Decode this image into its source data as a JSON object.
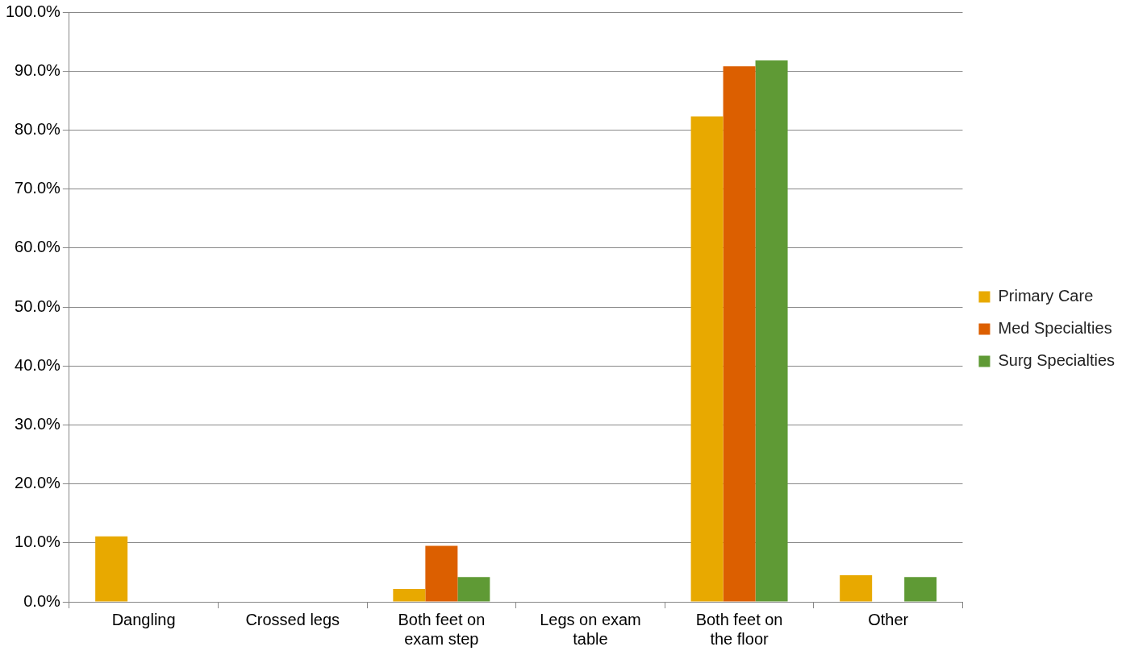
{
  "chart_data": {
    "type": "bar",
    "categories": [
      "Dangling",
      "Crossed legs",
      "Both feet on exam step",
      "Legs on exam table",
      "Both feet on the floor",
      "Other"
    ],
    "series": [
      {
        "name": "Primary Care",
        "color": "#e8a900",
        "values": [
          11.1,
          0,
          2.2,
          0,
          82.3,
          4.5
        ]
      },
      {
        "name": "Med Specialties",
        "color": "#dc5f00",
        "values": [
          0,
          0,
          9.5,
          0,
          90.8,
          0
        ]
      },
      {
        "name": "Surg Specialties",
        "color": "#5f9a35",
        "values": [
          0,
          0,
          4.2,
          0,
          91.8,
          4.2
        ]
      }
    ],
    "ylim": [
      0,
      100
    ],
    "yticks": [
      {
        "value": 0,
        "label": "0.0%"
      },
      {
        "value": 10,
        "label": "10.0%"
      },
      {
        "value": 20,
        "label": "20.0%"
      },
      {
        "value": 30,
        "label": "30.0%"
      },
      {
        "value": 40,
        "label": "40.0%"
      },
      {
        "value": 50,
        "label": "50.0%"
      },
      {
        "value": 60,
        "label": "60.0%"
      },
      {
        "value": 70,
        "label": "70.0%"
      },
      {
        "value": 80,
        "label": "80.0%"
      },
      {
        "value": 90,
        "label": "90.0%"
      },
      {
        "value": 100,
        "label": "100.0%"
      }
    ],
    "grid": "y",
    "legend": "right"
  }
}
